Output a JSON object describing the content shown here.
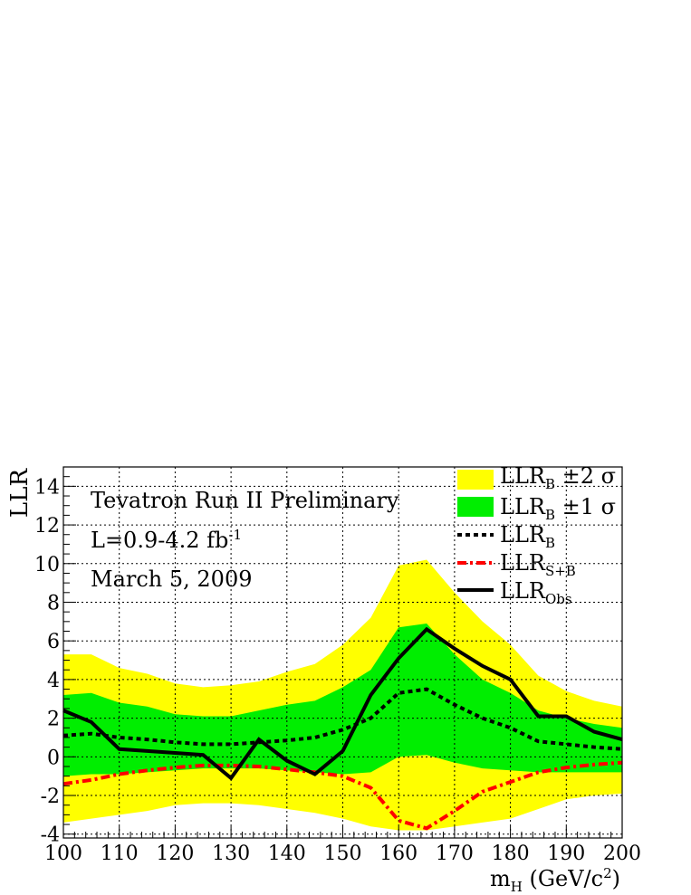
{
  "chart_data": {
    "type": "line",
    "title": "",
    "xlabel": "mH (GeV/c2)",
    "xlabel_main": "m",
    "xlabel_sub": "H",
    "xlabel_rest": " (GeV/c",
    "xlabel_sup": "2",
    "xlabel_close": ")",
    "ylabel": "LLR",
    "xlim": [
      100,
      200
    ],
    "ylim": [
      -4.2,
      15
    ],
    "xticks": [
      100,
      110,
      120,
      130,
      140,
      150,
      160,
      170,
      180,
      190,
      200
    ],
    "yticks": [
      -4,
      -2,
      0,
      2,
      4,
      6,
      8,
      10,
      12,
      14
    ],
    "grid": true,
    "legend_position": "top-right",
    "annotations": {
      "line1": "Tevatron Run II Preliminary",
      "line2_main": "L=0.9-4.2 fb",
      "line2_sup": "-1",
      "line3": "March 5, 2009"
    },
    "legend": {
      "band2_main": "LLR",
      "band2_sub": "B",
      "band2_rest": "  ±2 σ",
      "band1_main": "LLR",
      "band1_sub": "B",
      "band1_rest": "  ±1 σ",
      "llrb_main": "LLR",
      "llrb_sub": "B",
      "llrsb_main": "LLR",
      "llrsb_sub": "S+B",
      "llrobs_main": "LLR",
      "llrobs_sub": "Obs"
    },
    "colors": {
      "band2": "#ffff00",
      "band1": "#00ee00",
      "llr_b": "#000000",
      "llr_sb": "#ff0000",
      "llr_obs": "#000000"
    },
    "x": [
      100,
      105,
      110,
      115,
      120,
      125,
      130,
      135,
      140,
      145,
      150,
      155,
      160,
      165,
      170,
      175,
      180,
      185,
      190,
      195,
      200
    ],
    "series": [
      {
        "name": "LLR_B ±2σ",
        "kind": "band",
        "upper": [
          5.3,
          5.3,
          4.6,
          4.3,
          3.8,
          3.6,
          3.7,
          3.9,
          4.4,
          4.8,
          5.8,
          7.2,
          9.9,
          10.2,
          8.5,
          7.0,
          5.8,
          4.2,
          3.4,
          2.9,
          2.6
        ],
        "lower": [
          -3.4,
          -3.2,
          -3.0,
          -2.8,
          -2.5,
          -2.4,
          -2.4,
          -2.5,
          -2.7,
          -2.9,
          -3.2,
          -3.6,
          -3.8,
          -3.8,
          -3.6,
          -3.4,
          -3.2,
          -2.7,
          -2.2,
          -2.0,
          -1.9
        ]
      },
      {
        "name": "LLR_B ±1σ",
        "kind": "band",
        "upper": [
          3.2,
          3.3,
          2.8,
          2.6,
          2.2,
          2.1,
          2.1,
          2.4,
          2.7,
          2.9,
          3.6,
          4.5,
          6.7,
          6.9,
          5.3,
          4.0,
          3.3,
          2.4,
          2.0,
          1.7,
          1.5
        ],
        "lower": [
          -1.0,
          -0.9,
          -0.9,
          -0.8,
          -0.7,
          -0.6,
          -0.6,
          -0.6,
          -0.7,
          -0.8,
          -0.9,
          -0.8,
          0.0,
          0.1,
          -0.3,
          -0.6,
          -0.7,
          -0.8,
          -0.8,
          -0.8,
          -0.8
        ]
      },
      {
        "name": "LLR_B",
        "kind": "dotted",
        "values": [
          1.1,
          1.2,
          1.0,
          0.9,
          0.75,
          0.65,
          0.65,
          0.75,
          0.85,
          1.0,
          1.4,
          2.0,
          3.3,
          3.5,
          2.7,
          2.0,
          1.5,
          0.8,
          0.65,
          0.5,
          0.4
        ]
      },
      {
        "name": "LLR_S+B",
        "kind": "dashdot",
        "values": [
          -1.4,
          -1.2,
          -0.9,
          -0.7,
          -0.55,
          -0.45,
          -0.45,
          -0.5,
          -0.65,
          -0.8,
          -1.0,
          -1.6,
          -3.3,
          -3.7,
          -2.8,
          -1.8,
          -1.3,
          -0.8,
          -0.55,
          -0.4,
          -0.3
        ]
      },
      {
        "name": "LLR_Obs",
        "kind": "solid",
        "values": [
          2.4,
          1.8,
          0.4,
          0.3,
          0.2,
          0.1,
          -1.1,
          0.9,
          -0.2,
          -0.9,
          0.3,
          3.2,
          5.1,
          6.6,
          5.6,
          4.7,
          4.0,
          2.1,
          2.1,
          1.3,
          0.9
        ]
      }
    ]
  }
}
